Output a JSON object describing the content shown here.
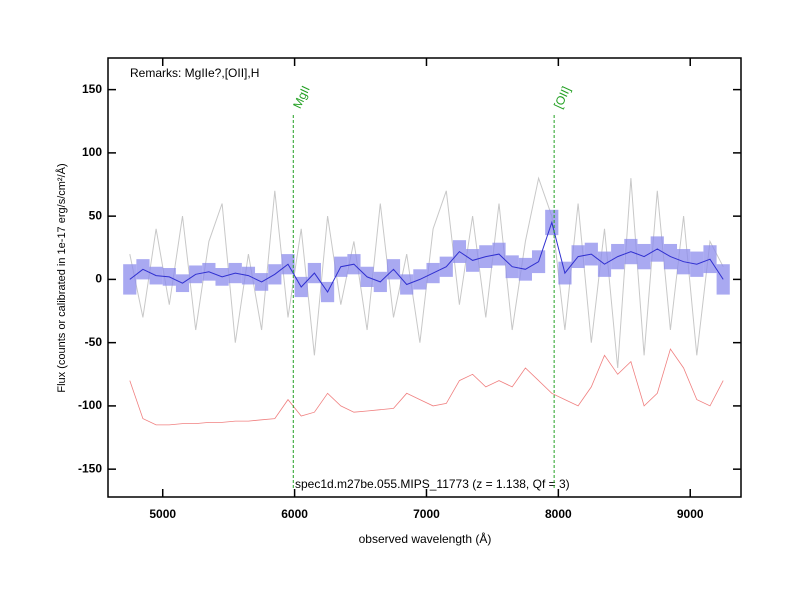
{
  "chart_data": {
    "type": "line",
    "remarks": "Remarks: MgIIe?,[OII],H",
    "caption": "spec1d.m27be.055.MIPS_11773 (z = 1.138, Qf = 3)",
    "xlabel": "observed wavelength (Å)",
    "ylabel": "Flux (counts or calibrated in 1e-17 erg/s/cm²/Å)",
    "x": [
      4750,
      4850,
      4950,
      5050,
      5150,
      5250,
      5350,
      5450,
      5550,
      5650,
      5750,
      5850,
      5950,
      6050,
      6150,
      6250,
      6350,
      6450,
      6550,
      6650,
      6750,
      6850,
      6950,
      7050,
      7150,
      7250,
      7350,
      7450,
      7550,
      7650,
      7750,
      7850,
      7950,
      8050,
      8150,
      8250,
      8350,
      8450,
      8550,
      8650,
      8750,
      8850,
      8950,
      9050,
      9150,
      9250
    ],
    "series": [
      {
        "color": "#c8c8c8",
        "values": [
          20,
          -30,
          40,
          -20,
          50,
          -40,
          30,
          60,
          -50,
          20,
          -40,
          70,
          -30,
          40,
          -60,
          50,
          -20,
          30,
          -40,
          60,
          -30,
          20,
          -50,
          40,
          70,
          -20,
          50,
          -30,
          60,
          -40,
          30,
          80,
          50,
          -40,
          60,
          -50,
          40,
          -70,
          80,
          -60,
          70,
          -40,
          50,
          -60,
          30,
          10
        ]
      },
      {
        "color": "#3030d0",
        "band_color": "#8c8cec",
        "values": [
          0,
          8,
          3,
          2,
          -3,
          4,
          6,
          2,
          5,
          3,
          -2,
          4,
          12,
          -6,
          5,
          -10,
          10,
          12,
          2,
          -2,
          8,
          -4,
          0,
          5,
          10,
          22,
          15,
          18,
          20,
          10,
          8,
          14,
          45,
          5,
          18,
          20,
          12,
          18,
          22,
          18,
          24,
          18,
          14,
          12,
          16,
          0
        ],
        "error": [
          12,
          8,
          7,
          7,
          7,
          7,
          7,
          7,
          8,
          7,
          7,
          8,
          8,
          8,
          8,
          8,
          8,
          8,
          8,
          8,
          8,
          8,
          8,
          8,
          8,
          9,
          9,
          9,
          9,
          9,
          9,
          9,
          10,
          9,
          9,
          9,
          10,
          10,
          10,
          10,
          10,
          10,
          10,
          10,
          11,
          12
        ]
      },
      {
        "color": "#f08080",
        "values": [
          -80,
          -110,
          -115,
          -115,
          -114,
          -114,
          -113,
          -113,
          -112,
          -112,
          -111,
          -110,
          -95,
          -108,
          -105,
          -90,
          -100,
          -105,
          -104,
          -103,
          -102,
          -90,
          -95,
          -100,
          -98,
          -80,
          -75,
          -85,
          -80,
          -85,
          -70,
          -80,
          -90,
          -95,
          -100,
          -85,
          -60,
          -75,
          -65,
          -100,
          -90,
          -55,
          -70,
          -95,
          -100,
          -80
        ]
      }
    ],
    "lines": [
      {
        "label": "MgII",
        "x": 5990
      },
      {
        "label": "[OII]",
        "x": 7968
      }
    ],
    "line_color": "#22a022",
    "xlim": [
      4585,
      9385
    ],
    "ylim": [
      -172,
      175
    ],
    "xticks": [
      5000,
      6000,
      7000,
      8000,
      9000
    ],
    "yticks": [
      -150,
      -100,
      -50,
      0,
      50,
      100,
      150
    ]
  }
}
